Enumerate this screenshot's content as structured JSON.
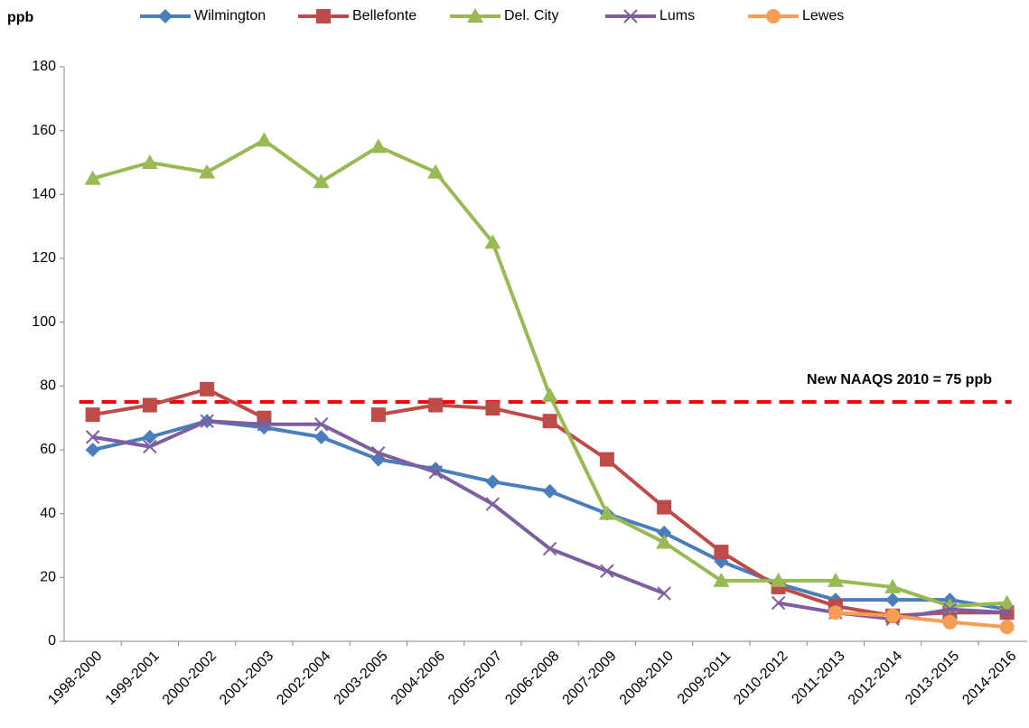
{
  "chart_data": {
    "type": "line",
    "y_label": "ppb",
    "categories": [
      "1998-2000",
      "1999-2001",
      "2000-2002",
      "2001-2003",
      "2002-2004",
      "2003-2005",
      "2004-2006",
      "2005-2007",
      "2006-2008",
      "2007-2009",
      "2008-2010",
      "2009-2011",
      "2010-2012",
      "2011-2013",
      "2012-2014",
      "2013-2015",
      "2014-2016"
    ],
    "series": [
      {
        "name": "Wilmington",
        "color": "#4a7ebb",
        "marker": "diamond",
        "values": [
          60,
          64,
          69,
          67,
          64,
          57,
          54,
          50,
          47,
          40,
          34,
          25,
          18,
          13,
          13,
          13,
          10
        ]
      },
      {
        "name": "Bellefonte",
        "color": "#be4b48",
        "marker": "square",
        "values": [
          71,
          74,
          79,
          70,
          null,
          71,
          74,
          73,
          69,
          57,
          42,
          28,
          17,
          11,
          8,
          9,
          9
        ]
      },
      {
        "name": "Del. City",
        "color": "#98b954",
        "marker": "triangle",
        "values": [
          145,
          150,
          147,
          157,
          144,
          155,
          147,
          125,
          77,
          40,
          31,
          19,
          19,
          19,
          17,
          11,
          12
        ]
      },
      {
        "name": "Lums",
        "color": "#7d5fa0",
        "marker": "x",
        "values": [
          64,
          61,
          69,
          68,
          68,
          59,
          53,
          43,
          29,
          22,
          15,
          null,
          12,
          9,
          7,
          10,
          9
        ]
      },
      {
        "name": "Lewes",
        "color": "#f59d56",
        "marker": "circle",
        "values": [
          null,
          null,
          null,
          null,
          null,
          null,
          null,
          null,
          null,
          null,
          null,
          null,
          null,
          9,
          8,
          6,
          4.5
        ]
      }
    ],
    "reference": {
      "value": 75,
      "label": "New NAAQS 2010 = 75 ppb",
      "color": "#ff0000"
    },
    "ylim": [
      0,
      180
    ],
    "yticks": [
      0,
      20,
      40,
      60,
      80,
      100,
      120,
      140,
      160,
      180
    ]
  }
}
